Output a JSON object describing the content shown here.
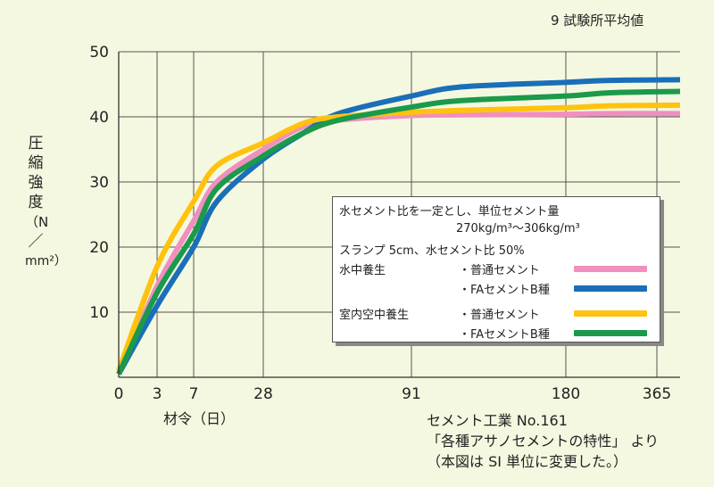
{
  "note": "9 試験所平均値",
  "ylabel_chars": [
    "圧",
    "縮",
    "強",
    "度",
    "（N",
    "／",
    "mm²）"
  ],
  "xlabel": "材令（日）",
  "source_lines": [
    "セメント工業 No.161",
    "「各種アサノセメントの特性」 より",
    "（本図は SI 単位に変更した。）"
  ],
  "legend": {
    "cond1": "水セメント比を一定とし、単位セメント量",
    "cond2": "270kg/m³～306kg/m³",
    "cond3": "スランプ 5cm、水セメント比 50%",
    "rows": [
      {
        "group": "水中養生",
        "entry": "・普通セメント",
        "color": "#f08fc0"
      },
      {
        "group": "",
        "entry": "・FAセメントB種",
        "color": "#1a6fb8"
      },
      {
        "group": "室内空中養生",
        "entry": "・普通セメント",
        "color": "#ffc20e"
      },
      {
        "group": "",
        "entry": "・FAセメントB種",
        "color": "#1a9a4a"
      }
    ]
  },
  "chart_data": {
    "type": "line",
    "x_ticks": [
      "0",
      "3",
      "7",
      "28",
      "91",
      "180",
      "365"
    ],
    "y_ticks": [
      10,
      20,
      30,
      40,
      50
    ],
    "ylim": [
      0,
      50
    ],
    "grid": true,
    "series": [
      {
        "name": "水中養生 普通セメント",
        "color": "#f08fc0",
        "x": [
          0,
          3,
          7,
          14,
          28,
          45,
          60,
          91,
          120,
          180,
          270,
          365
        ],
        "y": [
          0.5,
          14,
          24,
          30,
          35,
          38.5,
          39.5,
          40.2,
          40.3,
          40.4,
          40.5,
          40.5
        ]
      },
      {
        "name": "水中養生 FAセメントB種",
        "color": "#1a6fb8",
        "x": [
          0,
          3,
          7,
          14,
          28,
          45,
          60,
          91,
          120,
          180,
          270,
          365
        ],
        "y": [
          0.5,
          11,
          20,
          27,
          33.5,
          37.5,
          40.5,
          43.2,
          44.6,
          45.3,
          45.6,
          45.7
        ]
      },
      {
        "name": "室内空中養生 普通セメント",
        "color": "#ffc20e",
        "x": [
          0,
          3,
          7,
          14,
          28,
          45,
          60,
          91,
          120,
          180,
          270,
          365
        ],
        "y": [
          1,
          17,
          27,
          32.5,
          36,
          39,
          40,
          40.7,
          41,
          41.4,
          41.7,
          41.8
        ]
      },
      {
        "name": "室内空中養生 FAセメントB種",
        "color": "#1a9a4a",
        "x": [
          0,
          3,
          7,
          14,
          28,
          45,
          60,
          91,
          120,
          180,
          270,
          365
        ],
        "y": [
          0.5,
          13,
          22,
          29,
          34,
          37.5,
          39.5,
          41.5,
          42.5,
          43.2,
          43.7,
          43.9
        ]
      }
    ]
  }
}
